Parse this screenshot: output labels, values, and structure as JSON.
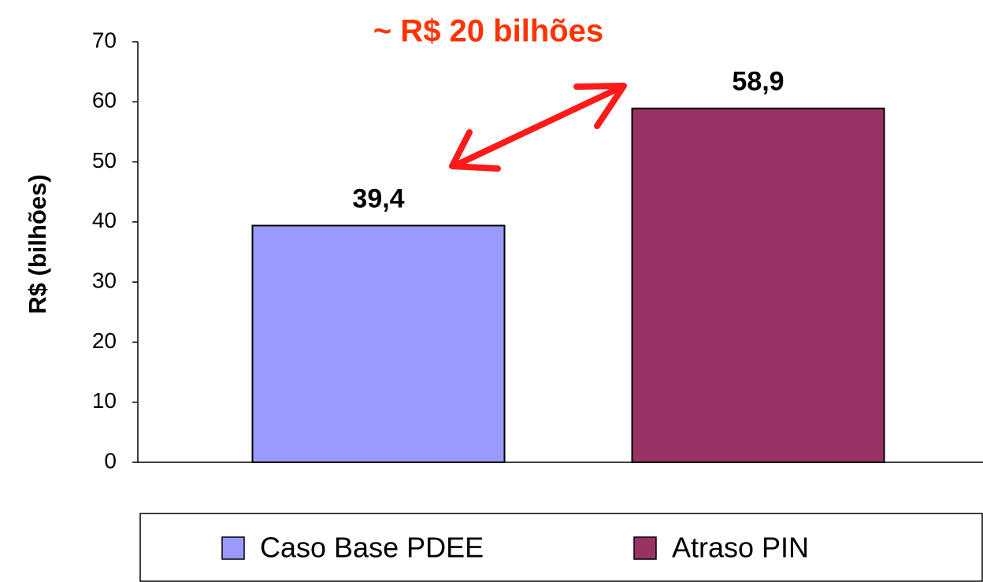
{
  "chart_data": {
    "type": "bar",
    "annotation": "~ R$ 20 bilhões",
    "y_label": "R$ (bilhões)",
    "categories": [
      null
    ],
    "series": [
      {
        "name": "Caso Base PDEE",
        "color": "#9999ff",
        "values": [
          39.4
        ],
        "value_labels": [
          "39,4"
        ]
      },
      {
        "name": "Atraso PIN",
        "color": "#993366",
        "values": [
          58.9
        ],
        "value_labels": [
          "58,9"
        ]
      }
    ],
    "ylim": [
      0,
      70
    ],
    "yticks": [
      0,
      10,
      20,
      30,
      40,
      50,
      60,
      70
    ],
    "legend": "bottom"
  }
}
